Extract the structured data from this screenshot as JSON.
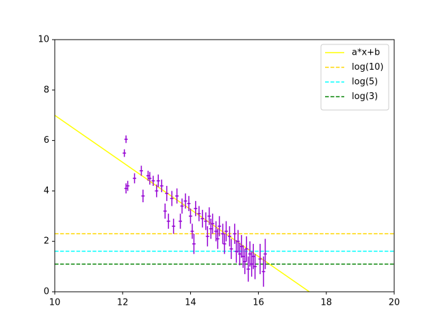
{
  "chart_data": {
    "type": "errorbar",
    "xlim": [
      10,
      20
    ],
    "ylim": [
      0,
      10
    ],
    "xticks": [
      10,
      12,
      14,
      16,
      18,
      20
    ],
    "yticks": [
      0,
      2,
      4,
      6,
      8,
      10
    ],
    "grid": false,
    "legend": "upper right",
    "series": [
      {
        "name": "a*x+b",
        "kind": "line",
        "style": "solid",
        "color": "#ffff00",
        "x": [
          10,
          17.5
        ],
        "values": [
          7,
          0
        ]
      },
      {
        "name": "log(10)",
        "kind": "line",
        "style": "dashed",
        "color": "#ffd700",
        "x": [
          10,
          20
        ],
        "values": [
          2.303,
          2.303
        ]
      },
      {
        "name": "log(5)",
        "kind": "line",
        "style": "dashed",
        "color": "#00ffff",
        "x": [
          10,
          20
        ],
        "values": [
          1.609,
          1.609
        ]
      },
      {
        "name": "log(3)",
        "kind": "line",
        "style": "dashed",
        "color": "#008000",
        "x": [
          10,
          20
        ],
        "values": [
          1.099,
          1.099
        ]
      },
      {
        "kind": "errorbar",
        "color": "#9400d3",
        "xerr": 0.05,
        "x": [
          12.05,
          12.1,
          12.1,
          12.15,
          12.35,
          12.55,
          12.6,
          12.75,
          12.8,
          12.9,
          13.0,
          13.05,
          13.15,
          13.25,
          13.3,
          13.35,
          13.45,
          13.5,
          13.6,
          13.7,
          13.75,
          13.85,
          13.95,
          14.0,
          14.05,
          14.1,
          14.15,
          14.25,
          14.35,
          14.45,
          14.5,
          14.55,
          14.6,
          14.65,
          14.75,
          14.8,
          14.85,
          14.95,
          15.0,
          15.05,
          15.15,
          15.2,
          15.3,
          15.35,
          15.4,
          15.45,
          15.5,
          15.55,
          15.6,
          15.65,
          15.7,
          15.75,
          15.8,
          15.85,
          15.9,
          16.05,
          16.15,
          16.2
        ],
        "values": [
          5.5,
          6.05,
          4.1,
          4.2,
          4.5,
          4.8,
          3.8,
          4.6,
          4.5,
          4.4,
          4.0,
          4.4,
          4.2,
          3.2,
          3.9,
          2.8,
          3.7,
          2.6,
          3.8,
          2.8,
          3.4,
          3.6,
          3.5,
          3.0,
          2.4,
          1.9,
          3.3,
          3.1,
          2.9,
          2.8,
          2.2,
          3.0,
          2.5,
          2.7,
          2.4,
          2.1,
          2.6,
          2.3,
          1.9,
          2.4,
          2.2,
          1.7,
          2.3,
          1.6,
          2.0,
          1.5,
          1.8,
          1.4,
          1.2,
          1.7,
          0.9,
          1.5,
          1.1,
          1.4,
          1.0,
          1.3,
          0.8,
          1.5
        ],
        "yerr": [
          0.15,
          0.15,
          0.2,
          0.2,
          0.2,
          0.2,
          0.25,
          0.2,
          0.25,
          0.2,
          0.25,
          0.25,
          0.25,
          0.3,
          0.3,
          0.3,
          0.3,
          0.3,
          0.3,
          0.3,
          0.3,
          0.3,
          0.3,
          0.3,
          0.3,
          0.4,
          0.3,
          0.3,
          0.35,
          0.35,
          0.4,
          0.35,
          0.4,
          0.4,
          0.4,
          0.4,
          0.4,
          0.4,
          0.4,
          0.4,
          0.4,
          0.4,
          0.4,
          0.45,
          0.45,
          0.45,
          0.45,
          0.45,
          0.5,
          0.5,
          0.5,
          0.5,
          0.5,
          0.5,
          0.5,
          0.6,
          0.6,
          0.6
        ]
      }
    ]
  }
}
